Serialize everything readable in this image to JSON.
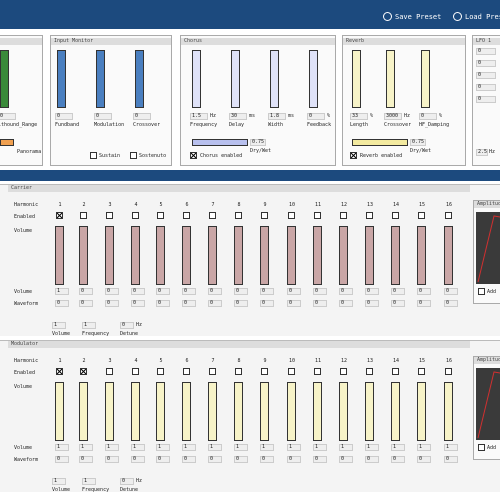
{
  "header": {
    "buttons": [
      "Save Preset",
      "Load Preset"
    ]
  },
  "panels": [
    {
      "title": "ns",
      "controls": [
        {
          "value": "0",
          "label": "ithound_Range"
        }
      ],
      "slider_label": "Panorama"
    },
    {
      "title": "Input Monitor",
      "controls": [
        {
          "value": "0",
          "label": "Fundband"
        },
        {
          "value": "0",
          "label": "Modulation"
        },
        {
          "value": "0",
          "label": "Crossover"
        }
      ],
      "checkboxes": [
        "Sustain",
        "Sostenuto"
      ]
    },
    {
      "title": "Chorus",
      "controls": [
        {
          "value": "1.5",
          "unit": "Hz",
          "label": "Frequency"
        },
        {
          "value": "30",
          "unit": "ms",
          "label": "Delay"
        },
        {
          "value": "1.8",
          "unit": "ms",
          "label": "Width"
        },
        {
          "value": "0",
          "unit": "%",
          "label": "Feedback"
        }
      ],
      "mix": {
        "value": "0.75",
        "label": "Dry/Wet"
      },
      "toggle": "Chorus enabled"
    },
    {
      "title": "Reverb",
      "controls": [
        {
          "value": "33",
          "unit": "%",
          "label": "Length"
        },
        {
          "value": "3000",
          "unit": "Hz",
          "label": "Crossover"
        },
        {
          "value": "0",
          "unit": "%",
          "label": "HF_Damping"
        }
      ],
      "mix": {
        "value": "0.75",
        "label": "Dry/Wet"
      },
      "toggle": "Reverb enabled"
    },
    {
      "title": "LFO 1",
      "fields": [
        "0",
        "0",
        "0",
        "0",
        "0"
      ],
      "rate": {
        "value": "2.5",
        "unit": "Hz"
      }
    }
  ],
  "sections": [
    {
      "title": "Carrier",
      "row_labels": [
        "Harmonic",
        "Enabled",
        "Volume",
        "Volume",
        "Waveform"
      ],
      "harmonics": [
        1,
        2,
        3,
        4,
        5,
        6,
        7,
        8,
        9,
        10,
        11,
        12,
        13,
        14,
        15,
        16
      ],
      "enabled": [
        true,
        false,
        false,
        false,
        false,
        false,
        false,
        false,
        false,
        false,
        false,
        false,
        false,
        false,
        false,
        false
      ],
      "volumes": [
        1,
        0,
        0,
        0,
        0,
        0,
        0,
        0,
        0,
        0,
        0,
        0,
        0,
        0,
        0,
        0
      ],
      "waveforms": [
        0,
        0,
        0,
        0,
        0,
        0,
        0,
        0,
        0,
        0,
        0,
        0,
        0,
        0,
        0,
        0
      ],
      "footer": [
        {
          "value": "1",
          "label": "Volume"
        },
        {
          "value": "1",
          "label": "Frequency"
        },
        {
          "value": "0",
          "unit": "Hz",
          "label": "Detune"
        }
      ],
      "side": {
        "title": "Amplitude",
        "button": "Add"
      }
    },
    {
      "title": "Modulator",
      "row_labels": [
        "Harmonic",
        "Enabled",
        "Volume",
        "Volume",
        "Waveform"
      ],
      "harmonics": [
        1,
        2,
        3,
        4,
        5,
        6,
        7,
        8,
        9,
        10,
        11,
        12,
        13,
        14,
        15,
        16
      ],
      "enabled": [
        true,
        true,
        false,
        false,
        false,
        false,
        false,
        false,
        false,
        false,
        false,
        false,
        false,
        false,
        false,
        false
      ],
      "volumes": [
        1,
        1,
        1,
        1,
        1,
        1,
        1,
        1,
        1,
        1,
        1,
        1,
        1,
        1,
        1,
        1
      ],
      "waveforms": [
        0,
        0,
        0,
        0,
        0,
        0,
        0,
        0,
        0,
        0,
        0,
        0,
        0,
        0,
        0,
        0
      ],
      "footer": [
        {
          "value": "1",
          "label": "Volume"
        },
        {
          "value": "1",
          "label": "Frequency"
        },
        {
          "value": "0",
          "unit": "Hz",
          "label": "Detune"
        }
      ],
      "side": {
        "title": "Amplitude",
        "button": "Add"
      }
    }
  ]
}
